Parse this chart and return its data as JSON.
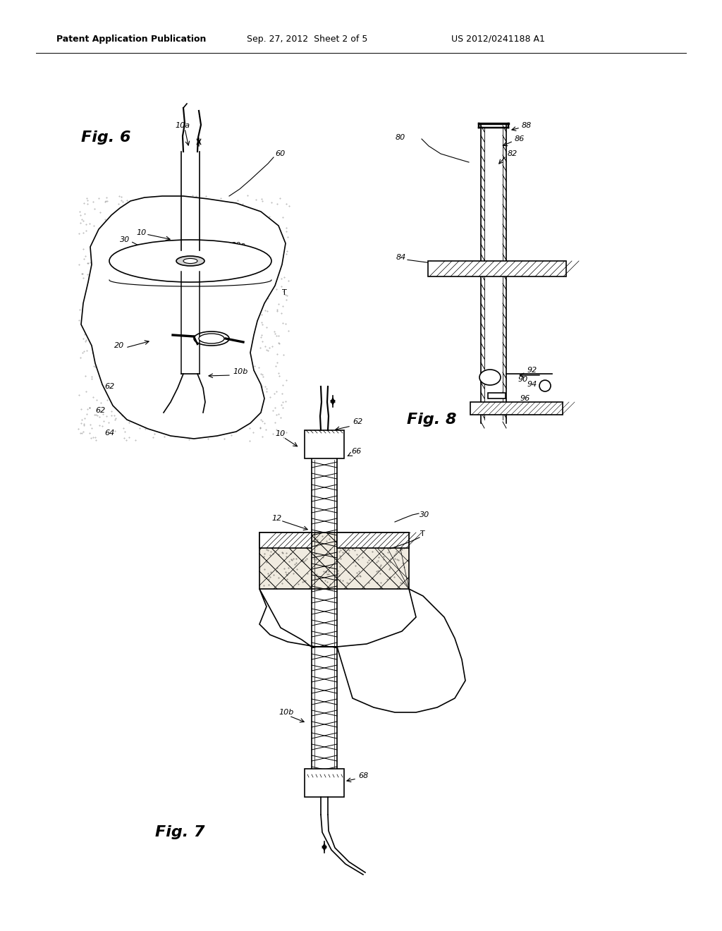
{
  "bg_color": "#ffffff",
  "header_text1": "Patent Application Publication",
  "header_text2": "Sep. 27, 2012  Sheet 2 of 5",
  "header_text3": "US 2012/0241188 A1"
}
